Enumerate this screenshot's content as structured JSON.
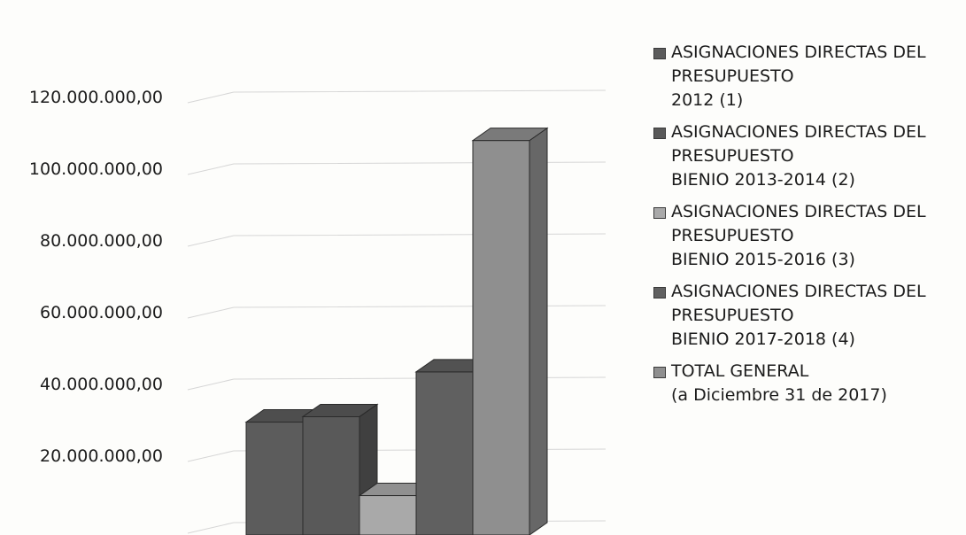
{
  "chart_data": {
    "type": "bar",
    "title": "",
    "xlabel": "",
    "ylabel": "",
    "ylim": [
      0,
      120000000
    ],
    "yticks": [
      20000000,
      40000000,
      60000000,
      80000000,
      100000000,
      120000000
    ],
    "ytick_labels": [
      "20.000.000,00",
      "40.000.000,00",
      "60.000.000,00",
      "80.000.000,00",
      "100.000.000,00",
      "120.000.000,00"
    ],
    "grid": true,
    "legend_position": "right",
    "style": "3d",
    "series": [
      {
        "name": "ASIGNACIONES DIRECTAS DEL PRESUPUESTO 2012 (1)",
        "lines": [
          "ASIGNACIONES DIRECTAS DEL",
          "PRESUPUESTO",
          "2012 (1)"
        ],
        "value": 29500000,
        "color": "#5c5c5c"
      },
      {
        "name": "ASIGNACIONES DIRECTAS DEL PRESUPUESTO BIENIO 2013-2014 (2)",
        "lines": [
          "ASIGNACIONES DIRECTAS DEL",
          "PRESUPUESTO",
          "BIENIO 2013-2014 (2)"
        ],
        "value": 31000000,
        "color": "#595959"
      },
      {
        "name": "ASIGNACIONES DIRECTAS DEL PRESUPUESTO BIENIO 2015-2016 (3)",
        "lines": [
          "ASIGNACIONES DIRECTAS DEL",
          "PRESUPUESTO",
          "BIENIO 2015-2016 (3)"
        ],
        "value": 9000000,
        "color": "#a9a9a9"
      },
      {
        "name": "ASIGNACIONES DIRECTAS DEL PRESUPUESTO BIENIO 2017-2018 (4)",
        "lines": [
          "ASIGNACIONES DIRECTAS DEL",
          "PRESUPUESTO",
          "BIENIO 2017-2018 (4)"
        ],
        "value": 43500000,
        "color": "#606060"
      },
      {
        "name": "TOTAL GENERAL (a Diciembre 31 de 2017)",
        "lines": [
          "TOTAL GENERAL",
          "(a Diciembre 31 de 2017)"
        ],
        "value": 108000000,
        "color": "#8f8f8f"
      }
    ]
  }
}
